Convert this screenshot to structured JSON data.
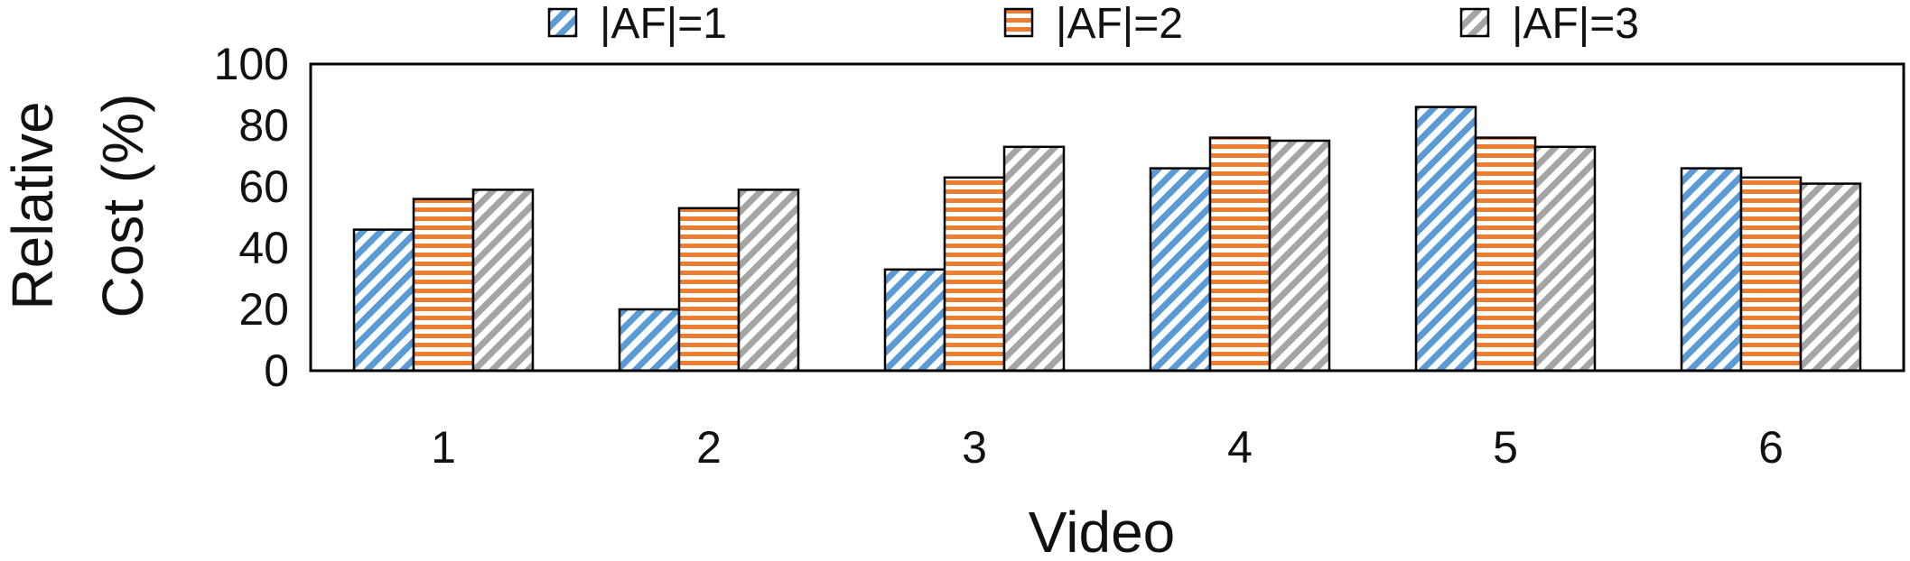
{
  "chart_data": {
    "type": "bar",
    "categories": [
      "1",
      "2",
      "3",
      "4",
      "5",
      "6"
    ],
    "series": [
      {
        "name": "|AF|=1",
        "values": [
          46,
          20,
          33,
          66,
          86,
          66
        ],
        "color": "#5B9BD5",
        "pattern": "diagonal-hatch"
      },
      {
        "name": "|AF|=2",
        "values": [
          56,
          53,
          63,
          76,
          76,
          63
        ],
        "color": "#ED7D31",
        "pattern": "horizontal-lines"
      },
      {
        "name": "|AF|=3",
        "values": [
          59,
          59,
          73,
          75,
          73,
          61
        ],
        "color": "#A5A5A5",
        "pattern": "diagonal-hatch"
      }
    ],
    "xlabel": "Video",
    "ylabel_lines": [
      "Relative",
      "Cost (%)"
    ],
    "ylim": [
      0,
      100
    ],
    "yticks": [
      0,
      20,
      40,
      60,
      80,
      100
    ],
    "legend_position": "top",
    "grid": false
  }
}
